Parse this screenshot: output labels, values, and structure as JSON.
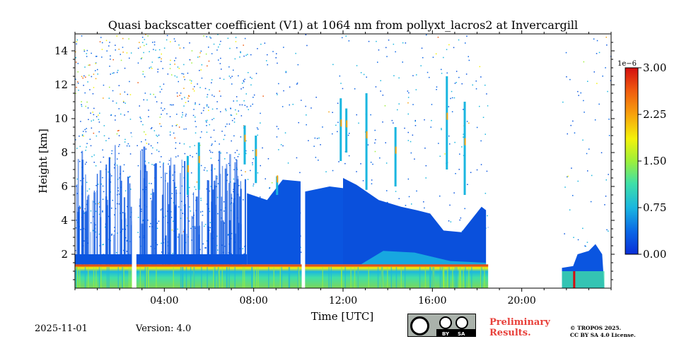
{
  "chart_data": {
    "type": "heatmap",
    "title": "Quasi backscatter coefficient (V1) at 1064 nm from pollyxt_lacros2 at Invercargill",
    "xlabel": "Time [UTC]",
    "ylabel": "Height [km]",
    "xlim_hours": [
      0,
      24
    ],
    "ylim_km": [
      0,
      15
    ],
    "x_ticks": [
      {
        "hour": 4,
        "label": "04:00"
      },
      {
        "hour": 8,
        "label": "08:00"
      },
      {
        "hour": 12,
        "label": "12:00"
      },
      {
        "hour": 16,
        "label": "16:00"
      },
      {
        "hour": 20,
        "label": "20:00"
      }
    ],
    "y_ticks": [
      {
        "value": 2,
        "label": "2"
      },
      {
        "value": 4,
        "label": "4"
      },
      {
        "value": 6,
        "label": "6"
      },
      {
        "value": 8,
        "label": "8"
      },
      {
        "value": 10,
        "label": "10"
      },
      {
        "value": 12,
        "label": "12"
      },
      {
        "value": 14,
        "label": "14"
      }
    ],
    "colorbar": {
      "min": 0.0,
      "max": 3.0,
      "scale_label": "1e−6",
      "ticks": [
        {
          "value": 0.0,
          "label": "0.00"
        },
        {
          "value": 0.75,
          "label": "0.75"
        },
        {
          "value": 1.5,
          "label": "1.50"
        },
        {
          "value": 2.25,
          "label": "2.25"
        },
        {
          "value": 3.0,
          "label": "3.00"
        }
      ],
      "colormap": [
        "#0a2fd8",
        "#0a66e6",
        "#1ab6e0",
        "#3fe0a8",
        "#9df03a",
        "#f4f20a",
        "#f7a20d",
        "#f05a0f",
        "#d40f0f"
      ]
    },
    "data_gaps_hours": [
      [
        2.55,
        2.75
      ],
      [
        10.15,
        10.3
      ],
      [
        18.5,
        21.8
      ]
    ],
    "features": [
      {
        "name": "near-surface aerosol layer",
        "t_start": 0.0,
        "t_end": 18.5,
        "top_km": 1.4,
        "level": "high"
      },
      {
        "name": "boundary layer",
        "t_start": 0.0,
        "t_end": 7.7,
        "top_km": 2.0,
        "level": "low"
      },
      {
        "name": "elevated aerosol layer",
        "t_start": 7.7,
        "t_end": 12.0,
        "top_km": 6.0,
        "level": "low"
      },
      {
        "name": "elevated aerosol layer",
        "t_start": 12.0,
        "t_end": 18.4,
        "top_km": 6.0,
        "level": "low"
      },
      {
        "name": "cirrus streaks",
        "t_start": 7.5,
        "t_end": 17.5,
        "top_km": 11.5,
        "level": "medium"
      },
      {
        "name": "late-day low cloud",
        "t_start": 21.8,
        "t_end": 23.7,
        "top_km": 2.6,
        "level": "high"
      }
    ]
  },
  "footer": {
    "date": "2025-11-01",
    "version": "Version: 4.0",
    "preliminary_line1": "Preliminary",
    "preliminary_line2": "Results.",
    "license_line1": "© TROPOS 2025.",
    "license_line2": "CC BY SA 4.0 License.",
    "cc_badge": {
      "by": "BY",
      "sa": "SA",
      "cc_icon": "cc-icon",
      "by_icon": "person-icon",
      "sa_icon": "share-alike-icon"
    }
  }
}
